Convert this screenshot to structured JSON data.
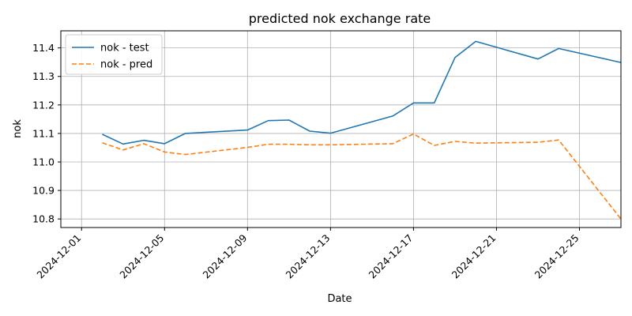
{
  "chart_data": {
    "type": "line",
    "title": "predicted nok exchange rate",
    "xlabel": "Date",
    "ylabel": "nok",
    "x_ticks": [
      "2024-12-01",
      "2024-12-05",
      "2024-12-09",
      "2024-12-13",
      "2024-12-17",
      "2024-12-21",
      "2024-12-25"
    ],
    "y_ticks": [
      "10.8",
      "10.9",
      "11.0",
      "11.1",
      "11.2",
      "11.3",
      "11.4"
    ],
    "xlim": [
      "2024-11-30",
      "2024-12-27"
    ],
    "ylim": [
      10.77,
      11.46
    ],
    "grid": true,
    "legend_position": "top-left",
    "series": [
      {
        "name": "nok - test",
        "color": "#1f77b4",
        "style": "solid",
        "points": [
          [
            "2024-12-02",
            11.097
          ],
          [
            "2024-12-03",
            11.063
          ],
          [
            "2024-12-04",
            11.076
          ],
          [
            "2024-12-05",
            11.064
          ],
          [
            "2024-12-06",
            11.1
          ],
          [
            "2024-12-09",
            11.112
          ],
          [
            "2024-12-10",
            11.145
          ],
          [
            "2024-12-11",
            11.147
          ],
          [
            "2024-12-12",
            11.108
          ],
          [
            "2024-12-13",
            11.101
          ],
          [
            "2024-12-16",
            11.161
          ],
          [
            "2024-12-17",
            11.207
          ],
          [
            "2024-12-18",
            11.207
          ],
          [
            "2024-12-19",
            11.366
          ],
          [
            "2024-12-20",
            11.423
          ],
          [
            "2024-12-23",
            11.361
          ],
          [
            "2024-12-24",
            11.398
          ],
          [
            "2024-12-27",
            11.349
          ]
        ]
      },
      {
        "name": "nok - pred",
        "color": "#ff7f0e",
        "style": "dashed",
        "points": [
          [
            "2024-12-02",
            11.067
          ],
          [
            "2024-12-03",
            11.042
          ],
          [
            "2024-12-04",
            11.064
          ],
          [
            "2024-12-05",
            11.035
          ],
          [
            "2024-12-06",
            11.026
          ],
          [
            "2024-12-09",
            11.051
          ],
          [
            "2024-12-10",
            11.062
          ],
          [
            "2024-12-11",
            11.062
          ],
          [
            "2024-12-12",
            11.06
          ],
          [
            "2024-12-13",
            11.06
          ],
          [
            "2024-12-16",
            11.064
          ],
          [
            "2024-12-17",
            11.098
          ],
          [
            "2024-12-18",
            11.058
          ],
          [
            "2024-12-19",
            11.072
          ],
          [
            "2024-12-20",
            11.066
          ],
          [
            "2024-12-23",
            11.069
          ],
          [
            "2024-12-24",
            11.077
          ],
          [
            "2024-12-27",
            10.8
          ]
        ]
      }
    ]
  }
}
